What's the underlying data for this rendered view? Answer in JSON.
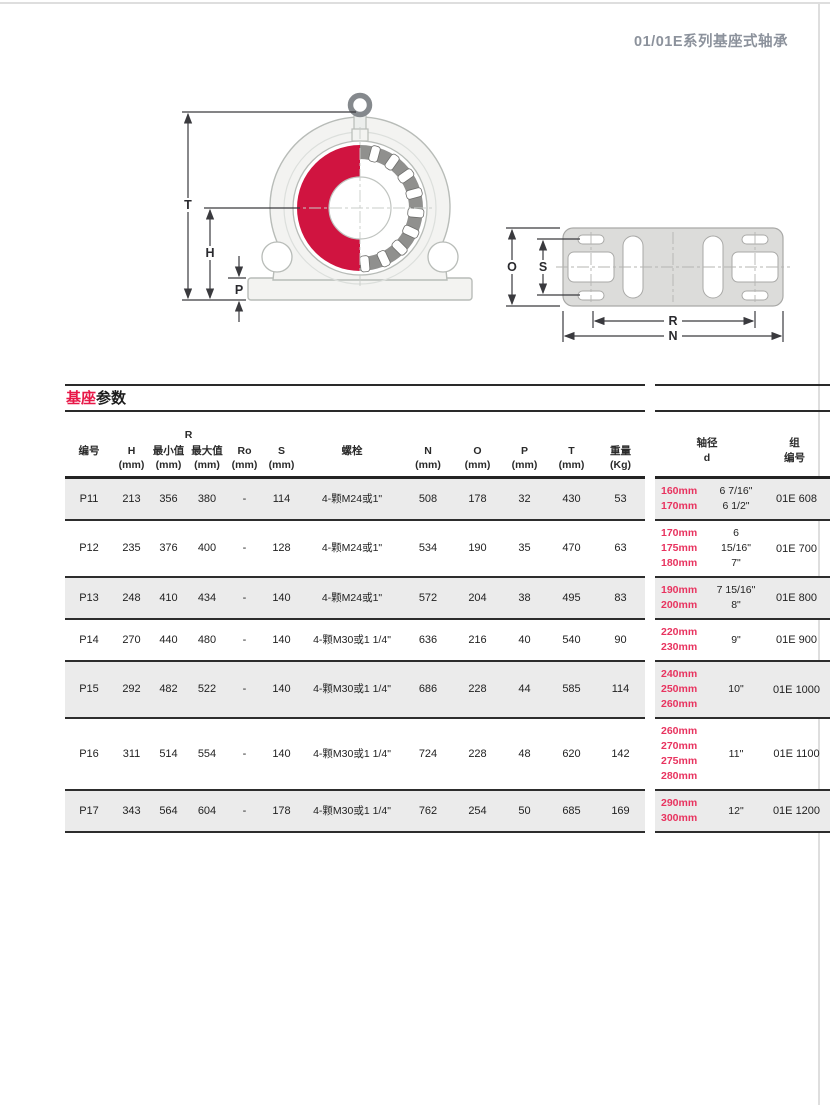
{
  "page": {
    "header_title": "01/01E系列基座式轴承"
  },
  "colors": {
    "accent_red": "#e8335f",
    "bearing_red": "#d01440",
    "title_red": "#e81848",
    "header_gray": "#8c929c",
    "row_shade": "#ebebeb"
  },
  "drawings": {
    "front_view": {
      "labels": {
        "t": "T",
        "h": "H",
        "p": "P"
      }
    },
    "plate_view": {
      "labels": {
        "o": "O",
        "s": "S",
        "r": "R",
        "n": "N"
      }
    }
  },
  "section": {
    "title_accent": "基座",
    "title_rest": "参数"
  },
  "table": {
    "header": {
      "id": "编号",
      "r_group": "R",
      "h": "H",
      "r_min": "最小值",
      "r_max": "最大值",
      "ro": "Ro",
      "s": "S",
      "bolt": "螺栓",
      "n": "N",
      "o": "O",
      "p": "P",
      "t": "T",
      "weight": "重量",
      "unit_mm": "(mm)",
      "unit_kg": "(Kg)",
      "shaft": "轴径",
      "shaft_sub": "d",
      "group": "组",
      "group_sub": "编号"
    },
    "rows": [
      {
        "id": "P11",
        "h": "213",
        "r_min": "356",
        "r_max": "380",
        "ro": "-",
        "s": "114",
        "bolt": "4-颗M24或1\"",
        "n": "508",
        "o": "178",
        "p": "32",
        "t": "430",
        "weight": "53",
        "shaft_mm": [
          "160mm",
          "170mm"
        ],
        "shaft_in": [
          "6 7/16\"",
          "6 1/2\""
        ],
        "group": "01E 608",
        "shaded": true
      },
      {
        "id": "P12",
        "h": "235",
        "r_min": "376",
        "r_max": "400",
        "ro": "-",
        "s": "128",
        "bolt": "4-颗M24或1\"",
        "n": "534",
        "o": "190",
        "p": "35",
        "t": "470",
        "weight": "63",
        "shaft_mm": [
          "170mm",
          "175mm",
          "180mm"
        ],
        "shaft_in": [
          "6",
          "15/16\"",
          "7\""
        ],
        "group": "01E 700",
        "shaded": false
      },
      {
        "id": "P13",
        "h": "248",
        "r_min": "410",
        "r_max": "434",
        "ro": "-",
        "s": "140",
        "bolt": "4-颗M24或1\"",
        "n": "572",
        "o": "204",
        "p": "38",
        "t": "495",
        "weight": "83",
        "shaft_mm": [
          "190mm",
          "200mm"
        ],
        "shaft_in": [
          "7 15/16\"",
          "8\""
        ],
        "group": "01E 800",
        "shaded": true
      },
      {
        "id": "P14",
        "h": "270",
        "r_min": "440",
        "r_max": "480",
        "ro": "-",
        "s": "140",
        "bolt": "4-颗M30或1 1/4\"",
        "n": "636",
        "o": "216",
        "p": "40",
        "t": "540",
        "weight": "90",
        "shaft_mm": [
          "220mm",
          "230mm"
        ],
        "shaft_in": [
          "9\""
        ],
        "group": "01E 900",
        "shaded": false
      },
      {
        "id": "P15",
        "h": "292",
        "r_min": "482",
        "r_max": "522",
        "ro": "-",
        "s": "140",
        "bolt": "4-颗M30或1 1/4\"",
        "n": "686",
        "o": "228",
        "p": "44",
        "t": "585",
        "weight": "114",
        "shaft_mm": [
          "240mm",
          "250mm",
          "260mm"
        ],
        "shaft_in": [
          "10\""
        ],
        "group": "01E 1000",
        "shaded": true
      },
      {
        "id": "P16",
        "h": "311",
        "r_min": "514",
        "r_max": "554",
        "ro": "-",
        "s": "140",
        "bolt": "4-颗M30或1 1/4\"",
        "n": "724",
        "o": "228",
        "p": "48",
        "t": "620",
        "weight": "142",
        "shaft_mm": [
          "260mm",
          "270mm",
          "275mm",
          "280mm"
        ],
        "shaft_in": [
          "11\""
        ],
        "group": "01E 1100",
        "shaded": false
      },
      {
        "id": "P17",
        "h": "343",
        "r_min": "564",
        "r_max": "604",
        "ro": "-",
        "s": "178",
        "bolt": "4-颗M30或1 1/4\"",
        "n": "762",
        "o": "254",
        "p": "50",
        "t": "685",
        "weight": "169",
        "shaft_mm": [
          "290mm",
          "300mm"
        ],
        "shaft_in": [
          "12\""
        ],
        "group": "01E 1200",
        "shaded": true
      }
    ]
  }
}
